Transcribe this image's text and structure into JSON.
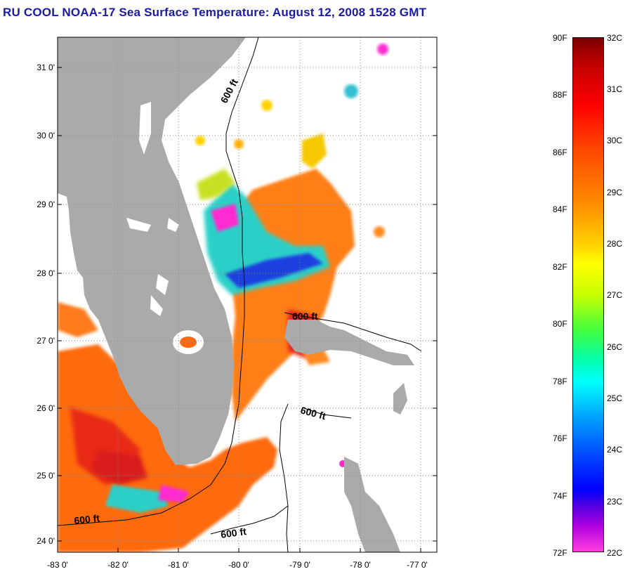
{
  "title": "RU COOL  NOAA-17  Sea Surface Temperature:  August 12, 2008 1528 GMT",
  "map": {
    "lat_labels": [
      "31 0'",
      "30 0'",
      "29 0'",
      "28 0'",
      "27 0'",
      "26 0'",
      "25 0'",
      "24 0'"
    ],
    "lon_labels": [
      "-83 0'",
      "-82 0'",
      "-81 0'",
      "-80 0'",
      "-79 0'",
      "-78 0'",
      "-77 0'"
    ],
    "contour_label": "600 ft",
    "colors": {
      "land": "#aaaaaa",
      "cloud_background": "#ffffff",
      "contour": "#000000",
      "grid": "#888888"
    }
  },
  "colorbar": {
    "fahrenheit_labels": [
      "90F",
      "88F",
      "86F",
      "84F",
      "82F",
      "80F",
      "78F",
      "76F",
      "74F",
      "72F"
    ],
    "celsius_labels": [
      "32C",
      "31C",
      "30C",
      "29C",
      "28C",
      "27C",
      "26C",
      "25C",
      "24C",
      "23C",
      "22C"
    ],
    "range_f": [
      72,
      90
    ],
    "range_c": [
      22,
      32
    ]
  }
}
